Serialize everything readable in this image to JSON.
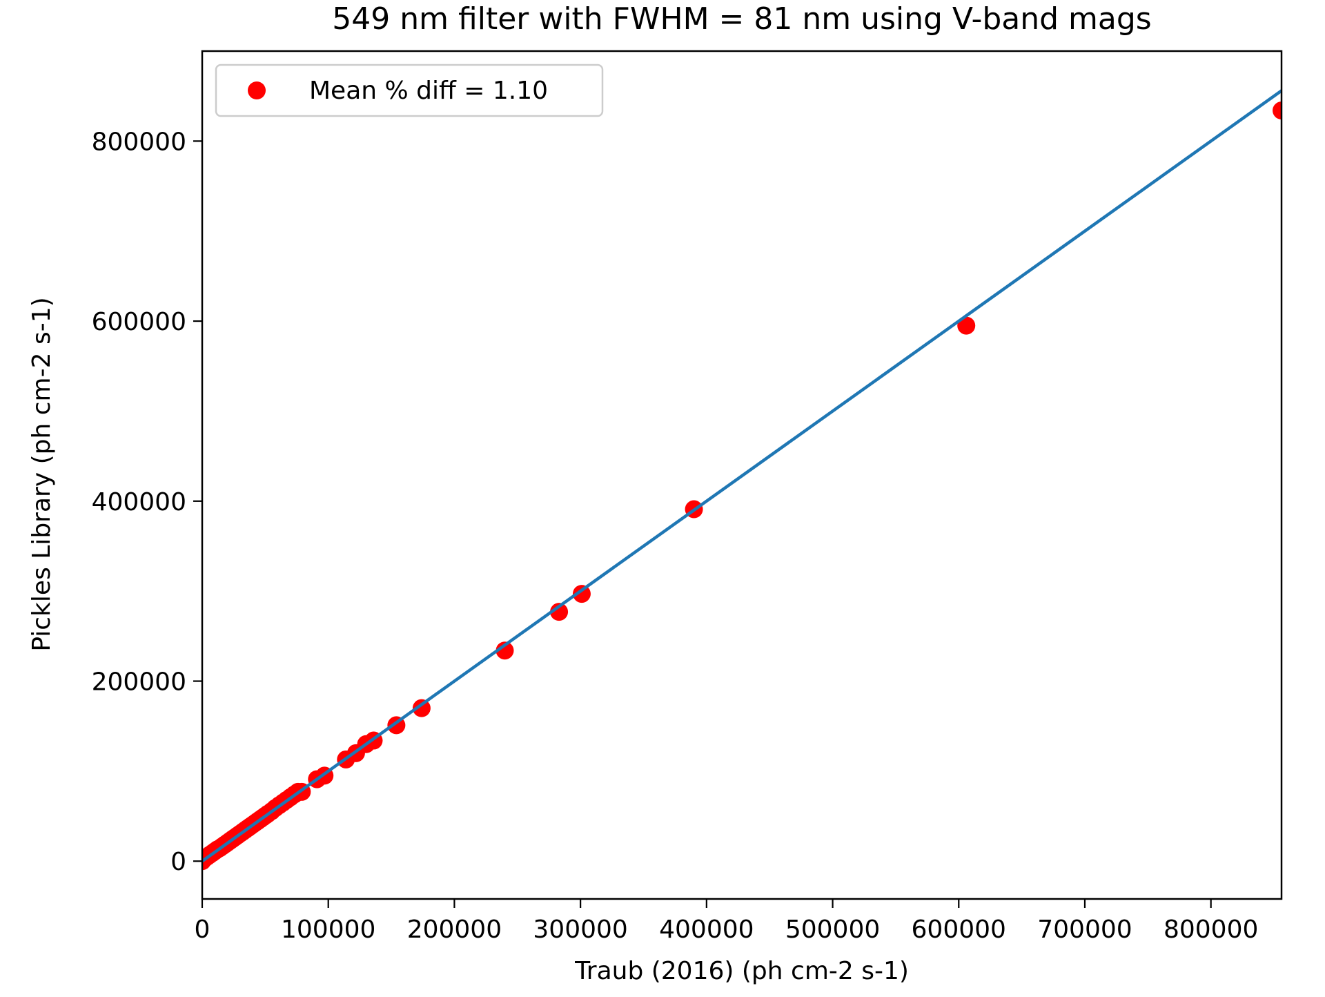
{
  "chart_data": {
    "type": "scatter",
    "title": "549 nm filter with FWHM = 81 nm using V-band mags",
    "xlabel": "Traub (2016) (ph cm-2 s-1)",
    "ylabel": "Pickles Library (ph cm-2 s-1)",
    "xlim": [
      0,
      856000
    ],
    "ylim": [
      -42000,
      900000
    ],
    "x_ticks": [
      0,
      100000,
      200000,
      300000,
      400000,
      500000,
      600000,
      700000,
      800000
    ],
    "x_tick_labels": [
      "0",
      "100000",
      "200000",
      "300000",
      "400000",
      "500000",
      "600000",
      "700000",
      "800000"
    ],
    "y_ticks": [
      0,
      200000,
      400000,
      600000,
      800000
    ],
    "y_tick_labels": [
      "0",
      "200000",
      "400000",
      "600000",
      "800000"
    ],
    "grid": false,
    "legend": {
      "position": "top-left",
      "entries": [
        {
          "label": "Mean % diff = 1.10",
          "marker": "circle",
          "color": "#ff0000"
        }
      ]
    },
    "series": [
      {
        "name": "Mean % diff = 1.10",
        "kind": "scatter",
        "color": "#ff0000",
        "points": [
          [
            0,
            0
          ],
          [
            2000,
            3000
          ],
          [
            4000,
            5000
          ],
          [
            6000,
            7000
          ],
          [
            8000,
            9000
          ],
          [
            10000,
            11000
          ],
          [
            12000,
            13000
          ],
          [
            14000,
            14500
          ],
          [
            16000,
            16500
          ],
          [
            18000,
            18500
          ],
          [
            20000,
            20500
          ],
          [
            22000,
            22500
          ],
          [
            24000,
            24500
          ],
          [
            26000,
            26500
          ],
          [
            28000,
            28500
          ],
          [
            30000,
            30500
          ],
          [
            32000,
            32500
          ],
          [
            34000,
            34500
          ],
          [
            36000,
            36500
          ],
          [
            38000,
            38500
          ],
          [
            40000,
            40500
          ],
          [
            42000,
            42500
          ],
          [
            44000,
            44500
          ],
          [
            46000,
            46500
          ],
          [
            48000,
            48500
          ],
          [
            50000,
            50500
          ],
          [
            52000,
            52500
          ],
          [
            55000,
            55500
          ],
          [
            58000,
            59000
          ],
          [
            61000,
            62000
          ],
          [
            64000,
            65000
          ],
          [
            67000,
            68000
          ],
          [
            70000,
            71000
          ],
          [
            73000,
            74000
          ],
          [
            76000,
            77000
          ],
          [
            79000,
            77000
          ],
          [
            91000,
            91000
          ],
          [
            97000,
            95000
          ],
          [
            114000,
            113000
          ],
          [
            122000,
            120000
          ],
          [
            130000,
            130000
          ],
          [
            136000,
            134000
          ],
          [
            154000,
            151000
          ],
          [
            174000,
            170000
          ],
          [
            240000,
            234000
          ],
          [
            283000,
            277000
          ],
          [
            301000,
            297000
          ],
          [
            390000,
            391000
          ],
          [
            606000,
            595000
          ],
          [
            856000,
            834000
          ]
        ]
      },
      {
        "name": "",
        "kind": "line",
        "color": "#1f77b4",
        "points": [
          [
            0,
            0
          ],
          [
            856000,
            856000
          ]
        ]
      }
    ]
  }
}
